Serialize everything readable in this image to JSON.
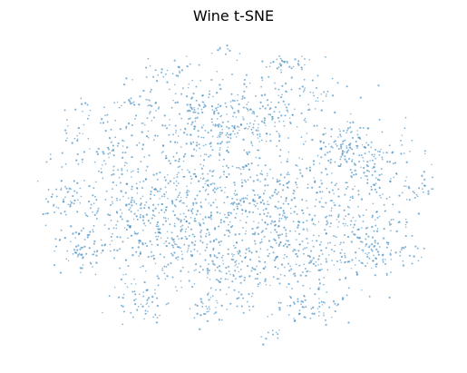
{
  "chart_data": {
    "type": "scatter",
    "title": "Wine t-SNE",
    "xlabel": "",
    "ylabel": "",
    "axes_visible": false,
    "grid": false,
    "legend": "none",
    "series": [
      {
        "color": "#1f77b4",
        "marker": "point",
        "extent": {
          "x": [
            -120,
            120
          ],
          "y": [
            -95,
            95
          ]
        },
        "clusters": [
          {
            "x": -48,
            "y": -5,
            "sx": 22,
            "sy": 18,
            "weight": 0.16
          },
          {
            "x": 8,
            "y": -8,
            "sx": 26,
            "sy": 22,
            "weight": 0.2
          },
          {
            "x": 68,
            "y": -2,
            "sx": 24,
            "sy": 26,
            "weight": 0.14
          },
          {
            "x": -18,
            "y": 38,
            "sx": 20,
            "sy": 12,
            "weight": 0.06
          },
          {
            "x": 10,
            "y": 48,
            "sx": 14,
            "sy": 10,
            "weight": 0.05
          },
          {
            "x": 30,
            "y": 82,
            "sx": 8,
            "sy": 4,
            "weight": 0.015
          },
          {
            "x": -55,
            "y": 55,
            "sx": 8,
            "sy": 5,
            "weight": 0.015
          },
          {
            "x": 60,
            "y": 35,
            "sx": 10,
            "sy": 6,
            "weight": 0.025
          },
          {
            "x": -100,
            "y": -2,
            "sx": 7,
            "sy": 5,
            "weight": 0.02
          },
          {
            "x": -88,
            "y": -30,
            "sx": 10,
            "sy": 7,
            "weight": 0.03
          },
          {
            "x": -55,
            "y": -62,
            "sx": 9,
            "sy": 7,
            "weight": 0.025
          },
          {
            "x": -18,
            "y": -68,
            "sx": 6,
            "sy": 4,
            "weight": 0.012
          },
          {
            "x": 45,
            "y": -68,
            "sx": 9,
            "sy": 5,
            "weight": 0.02
          },
          {
            "x": 85,
            "y": -35,
            "sx": 9,
            "sy": 7,
            "weight": 0.025
          },
          {
            "x": 108,
            "y": 5,
            "sx": 5,
            "sy": 4,
            "weight": 0.008
          },
          {
            "x": -75,
            "y": 30,
            "sx": 10,
            "sy": 8,
            "weight": 0.02
          },
          {
            "x": 75,
            "y": 25,
            "sx": 12,
            "sy": 8,
            "weight": 0.03
          },
          {
            "x": -2,
            "y": -48,
            "sx": 16,
            "sy": 10,
            "weight": 0.04
          },
          {
            "x": -20,
            "y": 60,
            "sx": 12,
            "sy": 8,
            "weight": 0.02
          },
          {
            "x": -30,
            "y": -35,
            "sx": 14,
            "sy": 10,
            "weight": 0.03
          },
          {
            "x": 40,
            "y": -35,
            "sx": 16,
            "sy": 12,
            "weight": 0.04
          },
          {
            "x": -90,
            "y": 45,
            "sx": 12,
            "sy": 10,
            "weight": 0.02
          },
          {
            "x": 30,
            "y": 60,
            "sx": 15,
            "sy": 10,
            "weight": 0.03
          },
          {
            "x": -40,
            "y": 75,
            "sx": 12,
            "sy": 6,
            "weight": 0.015
          },
          {
            "x": -5,
            "y": 88,
            "sx": 4,
            "sy": 3,
            "weight": 0.004
          },
          {
            "x": 20,
            "y": -85,
            "sx": 4,
            "sy": 3,
            "weight": 0.004
          }
        ]
      }
    ]
  }
}
